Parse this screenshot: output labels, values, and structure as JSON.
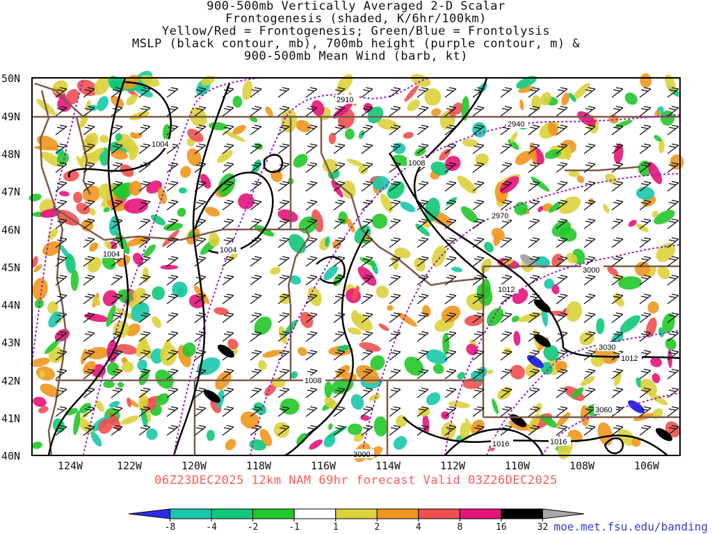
{
  "title_lines": [
    "900-500mb Vertically Averaged 2-D Scalar",
    "Frontogenesis (shaded, K/6hr/100km)",
    "Yellow/Red = Frontogenesis;  Green/Blue = Frontolysis",
    "MSLP (black contour, mb), 700mb height (purple contour, m) &",
    "900-500mb Mean Wind (barb, kt)"
  ],
  "footer": "06Z23DEC2025 12km NAM 69hr forecast Valid 03Z26DEC2025",
  "credit": "moe.met.fsu.edu/banding",
  "lat_labels": [
    "50N",
    "49N",
    "48N",
    "47N",
    "46N",
    "45N",
    "44N",
    "43N",
    "42N",
    "41N",
    "40N"
  ],
  "lon_labels": [
    "124W",
    "122W",
    "120W",
    "118W",
    "116W",
    "114W",
    "112W",
    "110W",
    "108W",
    "106W"
  ],
  "mslp_labels": [
    "1004",
    "1004",
    "1004",
    "1008",
    "1008",
    "1012",
    "1012",
    "1016",
    "1016"
  ],
  "height_labels": [
    "2910",
    "2940",
    "2970",
    "3000",
    "3000",
    "3030",
    "3060"
  ],
  "colorbar": {
    "ticks": [
      "-8",
      "-4",
      "-2",
      "-1",
      "1",
      "2",
      "4",
      "8",
      "16",
      "32"
    ],
    "colors": [
      "#2a2ae6",
      "#18c8a8",
      "#10c878",
      "#22c82a",
      "#ffffff",
      "#dcd23c",
      "#f0961e",
      "#f05050",
      "#e6147a",
      "#000000",
      "#a8a8a8"
    ]
  }
}
